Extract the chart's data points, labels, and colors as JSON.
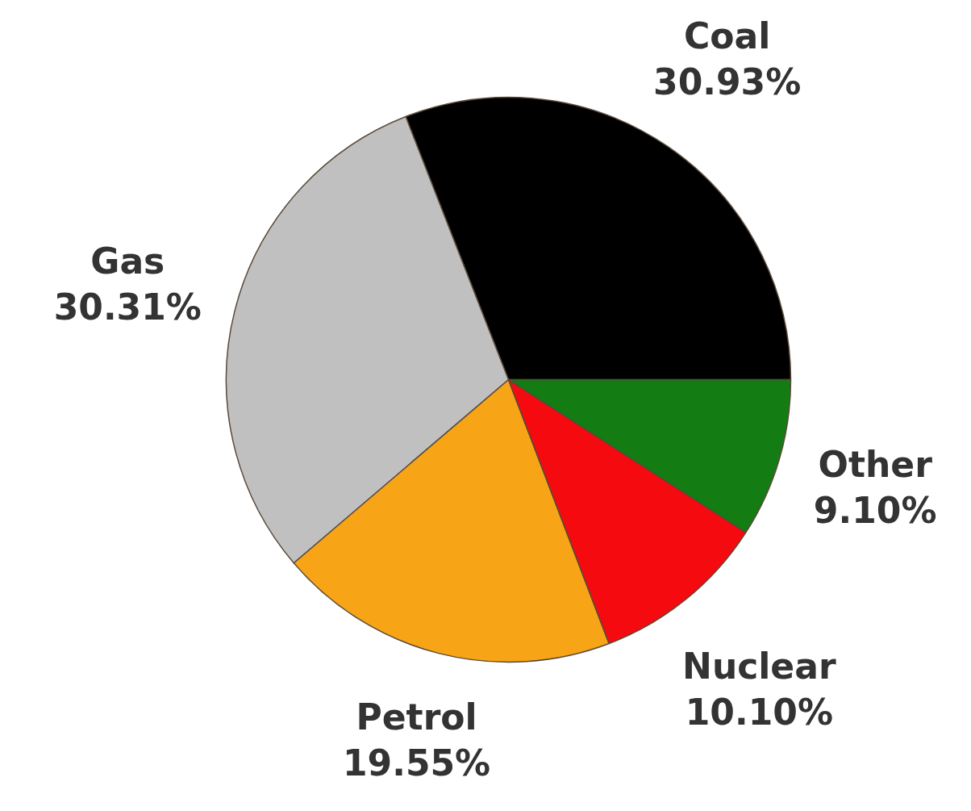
{
  "chart_data": {
    "type": "pie",
    "categories": [
      "Coal",
      "Gas",
      "Petrol",
      "Nuclear",
      "Other"
    ],
    "values": [
      30.93,
      30.31,
      19.55,
      10.1,
      9.1
    ],
    "colors": [
      "#000000",
      "#c0c0c0",
      "#f7a516",
      "#f50a0f",
      "#137d13"
    ],
    "value_labels": [
      "30.93%",
      "30.31%",
      "19.55%",
      "10.10%",
      "9.10%"
    ]
  }
}
